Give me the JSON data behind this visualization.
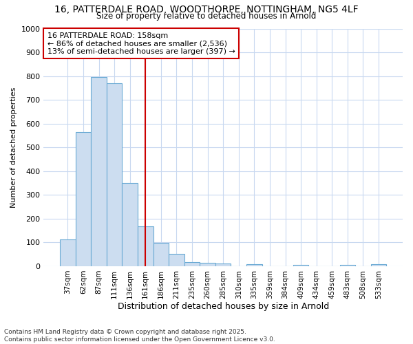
{
  "title_line1": "16, PATTERDALE ROAD, WOODTHORPE, NOTTINGHAM, NG5 4LF",
  "title_line2": "Size of property relative to detached houses in Arnold",
  "xlabel": "Distribution of detached houses by size in Arnold",
  "ylabel": "Number of detached properties",
  "bar_color": "#ccddf0",
  "bar_edge_color": "#6aaad4",
  "categories": [
    "37sqm",
    "62sqm",
    "87sqm",
    "111sqm",
    "136sqm",
    "161sqm",
    "186sqm",
    "211sqm",
    "235sqm",
    "260sqm",
    "285sqm",
    "310sqm",
    "335sqm",
    "359sqm",
    "384sqm",
    "409sqm",
    "434sqm",
    "459sqm",
    "483sqm",
    "508sqm",
    "533sqm"
  ],
  "values": [
    112,
    563,
    795,
    770,
    350,
    168,
    98,
    52,
    18,
    13,
    12,
    0,
    10,
    0,
    0,
    5,
    0,
    0,
    5,
    0,
    8
  ],
  "ylim": [
    0,
    1000
  ],
  "yticks": [
    0,
    100,
    200,
    300,
    400,
    500,
    600,
    700,
    800,
    900,
    1000
  ],
  "property_line_x": 5,
  "annotation_text_line1": "16 PATTERDALE ROAD: 158sqm",
  "annotation_text_line2": "← 86% of detached houses are smaller (2,536)",
  "annotation_text_line3": "13% of semi-detached houses are larger (397) →",
  "annotation_box_color": "#cc0000",
  "footer_line1": "Contains HM Land Registry data © Crown copyright and database right 2025.",
  "footer_line2": "Contains public sector information licensed under the Open Government Licence v3.0.",
  "background_color": "#ffffff",
  "grid_color": "#c8d8f0"
}
